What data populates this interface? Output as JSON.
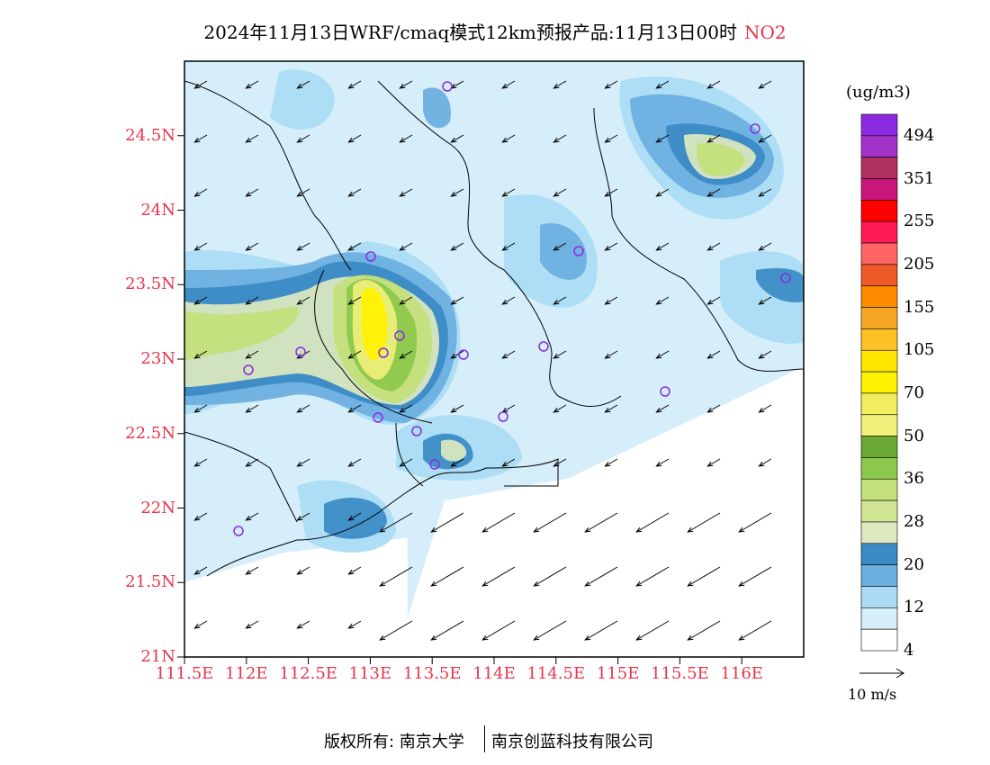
{
  "title": {
    "main": "2024年11月13日WRF/cmaq模式12km预报产品:11月13日00时",
    "pollutant": "NO2"
  },
  "map": {
    "lat_ticks": [
      "24.5N",
      "24N",
      "23.5N",
      "23N",
      "22.5N",
      "22N",
      "21.5N",
      "21N"
    ],
    "lon_ticks": [
      "111.5E",
      "112E",
      "112.5E",
      "113E",
      "113.5E",
      "114E",
      "114.5E",
      "115E",
      "115.5E",
      "116E"
    ],
    "lat_range": [
      21,
      25
    ],
    "lon_range": [
      111.5,
      116.5
    ],
    "field": "NO2 concentration",
    "hotspot_levels": [
      "20–36",
      "50–70 peak near 113E, 23.2N"
    ],
    "wind": "easterly / north-easterly flow, stronger over the sea"
  },
  "colorbar": {
    "unit": "(ug/m3)",
    "labels": [
      "494",
      "351",
      "255",
      "205",
      "155",
      "105",
      "70",
      "50",
      "36",
      "28",
      "20",
      "12",
      "4"
    ],
    "colors": [
      "#8a2be2",
      "#a333c8",
      "#b03060",
      "#c8167a",
      "#ff0000",
      "#ff1a55",
      "#ff6363",
      "#f05a28",
      "#ff8c00",
      "#f5a623",
      "#ffc125",
      "#ffe600",
      "#fff200",
      "#f2ec5f",
      "#f0f07a",
      "#6aa832",
      "#8cc84b",
      "#c3e07a",
      "#d0e695",
      "#dde9c0",
      "#3a8ac4",
      "#6aaee0",
      "#a9dcf4",
      "#d6eefa",
      "#ffffff"
    ]
  },
  "wind_reference": {
    "label": "10 m/s"
  },
  "footer": {
    "left": "版权所有: 南京大学",
    "right": "南京创蓝科技有限公司"
  }
}
